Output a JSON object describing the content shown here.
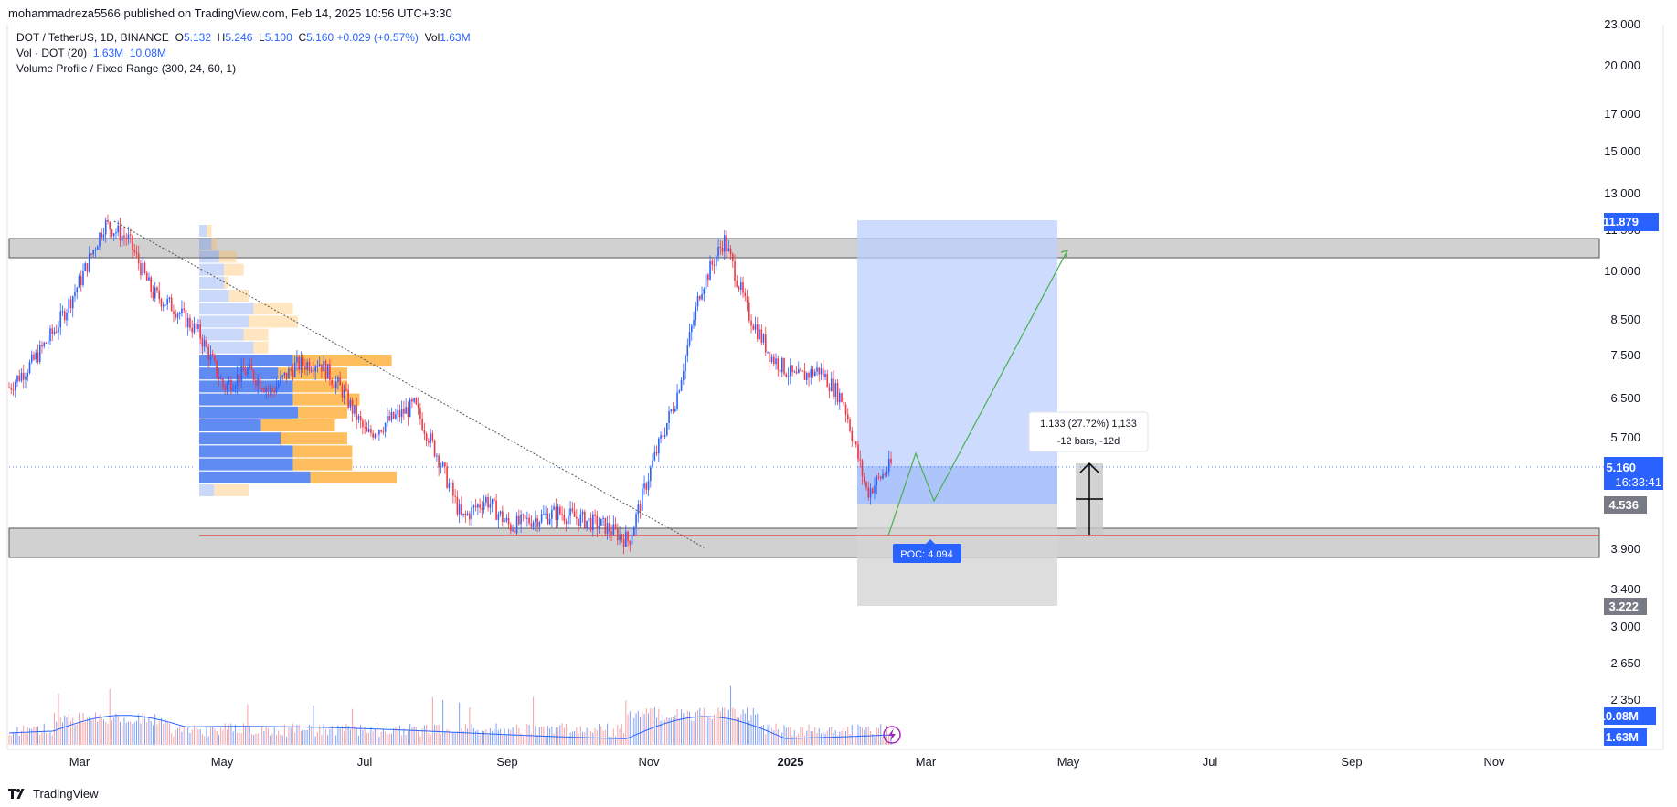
{
  "header": {
    "published": "mohammadreza5566 published on TradingView.com, Feb 14, 2025 10:56 UTC+3:30"
  },
  "legend": {
    "symbol": "DOT / TetherUS, 1D, BINANCE",
    "o_label": "O",
    "o": "5.132",
    "h_label": "H",
    "h": "5.246",
    "l_label": "L",
    "l": "5.100",
    "c_label": "C",
    "c": "5.160",
    "change": "+0.029 (+0.57%)",
    "vol_label": "Vol",
    "vol": "1.63M",
    "vol_ind": "Vol · DOT (20)",
    "vol_ind_v1": "1.63M",
    "vol_ind_v2": "10.08M",
    "vp": "Volume Profile / Fixed Range (300, 24, 60, 1)"
  },
  "footer": {
    "brand": "TradingView"
  },
  "annotations": {
    "measure_line1": "1.133 (27.72%) 1,133",
    "measure_line2": "-12 bars, -12d",
    "poc": "POC: 4.094"
  },
  "colors": {
    "up": "#26a69a",
    "down": "#ef5350",
    "candle_up": "#2962ff",
    "candle_down": "#f23645",
    "accent": "#2962ff",
    "vp_blue": "#4f7ff0",
    "vp_orange": "#ffb74d",
    "zone": "#b2b2b2",
    "target_zone": "#bbcffd",
    "stop_zone": "#d4d4d4",
    "poc_line": "#e53935"
  },
  "chart_data": {
    "type": "line",
    "price_axis": {
      "scale": "log",
      "ticks": [
        "23.000",
        "20.000",
        "17.000",
        "15.000",
        "13.000",
        "11.500",
        "10.000",
        "8.500",
        "7.500",
        "6.500",
        "5.700",
        "5.160",
        "3.900",
        "3.400",
        "3.000",
        "2.650",
        "2.350"
      ],
      "labels": {
        "high_marker": "11.879",
        "last_price": "5.160",
        "countdown": "16:33:41",
        "entry": "4.536",
        "stop": "3.222",
        "vol_ma": "10.08M",
        "vol_last": "1.63M"
      }
    },
    "time_axis": [
      "Mar",
      "May",
      "Jul",
      "Sep",
      "Nov",
      "2025",
      "Mar",
      "May",
      "Jul",
      "Sep",
      "Nov"
    ],
    "series": [
      {
        "name": "DOT / TetherUS",
        "points": [
          [
            "Feb",
            6.7
          ],
          [
            "Feb",
            7.3
          ],
          [
            "Mar",
            8.2
          ],
          [
            "Mar",
            9.6
          ],
          [
            "Mar",
            11.6
          ],
          [
            "Mar",
            11.0
          ],
          [
            "Apr",
            9.2
          ],
          [
            "Apr",
            8.7
          ],
          [
            "Apr",
            8.0
          ],
          [
            "Apr",
            6.7
          ],
          [
            "May",
            7.1
          ],
          [
            "May",
            6.6
          ],
          [
            "May",
            7.2
          ],
          [
            "Jun",
            7.3
          ],
          [
            "Jun",
            6.6
          ],
          [
            "Jul",
            5.7
          ],
          [
            "Jul",
            6.0
          ],
          [
            "Jul",
            6.3
          ],
          [
            "Aug",
            5.3
          ],
          [
            "Aug",
            4.3
          ],
          [
            "Aug",
            4.6
          ],
          [
            "Sep",
            4.2
          ],
          [
            "Sep",
            4.3
          ],
          [
            "Sep",
            4.4
          ],
          [
            "Oct",
            4.3
          ],
          [
            "Oct",
            4.2
          ],
          [
            "Nov",
            4.0
          ],
          [
            "Nov",
            5.2
          ],
          [
            "Nov",
            6.5
          ],
          [
            "Dec",
            9.3
          ],
          [
            "Dec",
            11.0
          ],
          [
            "Dec",
            8.6
          ],
          [
            "Jan",
            7.4
          ],
          [
            "Jan",
            6.9
          ],
          [
            "Jan",
            7.1
          ],
          [
            "Feb",
            6.4
          ],
          [
            "Feb",
            4.7
          ],
          [
            "Feb",
            5.16
          ]
        ]
      }
    ],
    "levels": {
      "resistance_zone": [
        10.4,
        10.9
      ],
      "support_zone": [
        3.85,
        4.15
      ],
      "poc": 4.094
    },
    "grid": false,
    "legend_position": "top-left"
  }
}
